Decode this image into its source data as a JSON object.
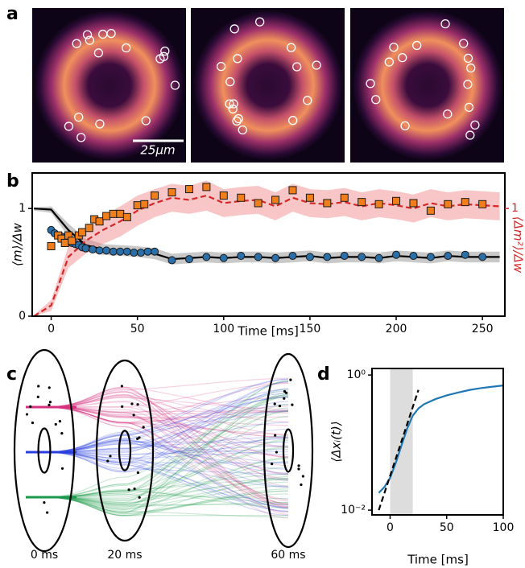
{
  "panel_labels": [
    "a",
    "b",
    "c",
    "d"
  ],
  "images": {
    "scale_bar": "25μm"
  },
  "diagram": {
    "timepoints": [
      "0 ms",
      "20 ms",
      "60 ms"
    ]
  },
  "chart_data": [
    {
      "type": "line",
      "xlabel": "Time [ms]",
      "ylabel": "⟨m⟩/Δw",
      "y2label": "⟨Δm²⟩/Δw",
      "y2_color": "#d62728",
      "xlim": [
        -11,
        263
      ],
      "xticks": [
        0,
        50,
        100,
        150,
        200,
        250
      ],
      "ylim": [
        0,
        1.33
      ],
      "yticks": [
        0,
        1
      ],
      "y2lim": [
        0,
        1.33
      ],
      "y2ticks": [
        1
      ],
      "series": [
        {
          "color": "#000000",
          "line_style": "solid",
          "band_color": "#888888",
          "x": [
            -10,
            0,
            10,
            20,
            30,
            40,
            50,
            60,
            70,
            80,
            90,
            100,
            110,
            120,
            130,
            140,
            150,
            160,
            170,
            180,
            190,
            200,
            210,
            220,
            230,
            240,
            250,
            260
          ],
          "values": [
            1.0,
            0.99,
            0.8,
            0.66,
            0.62,
            0.61,
            0.6,
            0.58,
            0.53,
            0.54,
            0.55,
            0.54,
            0.55,
            0.55,
            0.54,
            0.55,
            0.56,
            0.54,
            0.55,
            0.55,
            0.54,
            0.56,
            0.55,
            0.54,
            0.56,
            0.55,
            0.55,
            0.55
          ],
          "lower": [
            0.98,
            0.96,
            0.74,
            0.6,
            0.57,
            0.56,
            0.55,
            0.53,
            0.48,
            0.49,
            0.5,
            0.49,
            0.5,
            0.5,
            0.49,
            0.5,
            0.51,
            0.49,
            0.5,
            0.5,
            0.49,
            0.51,
            0.5,
            0.49,
            0.51,
            0.5,
            0.5,
            0.5
          ],
          "upper": [
            1.01,
            1.02,
            0.86,
            0.72,
            0.67,
            0.66,
            0.65,
            0.63,
            0.58,
            0.59,
            0.6,
            0.59,
            0.6,
            0.6,
            0.59,
            0.6,
            0.61,
            0.59,
            0.6,
            0.6,
            0.59,
            0.61,
            0.6,
            0.59,
            0.61,
            0.6,
            0.6,
            0.6
          ]
        },
        {
          "color": "#d62728",
          "line_style": "dashed",
          "band_color": "#f08080",
          "axis": "y2",
          "x": [
            -10,
            0,
            10,
            20,
            30,
            40,
            50,
            60,
            70,
            80,
            90,
            100,
            110,
            120,
            130,
            140,
            150,
            160,
            170,
            180,
            190,
            200,
            210,
            220,
            230,
            240,
            250,
            260
          ],
          "values": [
            0.0,
            0.1,
            0.55,
            0.7,
            0.8,
            0.88,
            0.98,
            1.05,
            1.1,
            1.08,
            1.12,
            1.05,
            1.07,
            1.08,
            1.02,
            1.1,
            1.05,
            1.04,
            1.06,
            1.02,
            1.05,
            1.03,
            1.0,
            1.05,
            1.02,
            1.04,
            1.03,
            1.02
          ],
          "lower": [
            0,
            0.05,
            0.45,
            0.58,
            0.67,
            0.74,
            0.84,
            0.92,
            0.97,
            0.95,
            0.98,
            0.92,
            0.94,
            0.95,
            0.89,
            0.97,
            0.92,
            0.91,
            0.93,
            0.89,
            0.92,
            0.9,
            0.87,
            0.92,
            0.89,
            0.91,
            0.9,
            0.89
          ],
          "upper": [
            0.01,
            0.15,
            0.65,
            0.82,
            0.93,
            1.02,
            1.12,
            1.18,
            1.23,
            1.21,
            1.26,
            1.18,
            1.2,
            1.21,
            1.15,
            1.23,
            1.18,
            1.17,
            1.19,
            1.15,
            1.18,
            1.16,
            1.13,
            1.18,
            1.15,
            1.17,
            1.16,
            1.15
          ]
        },
        {
          "color": "#2a6fa8",
          "marker": "circle",
          "x": [
            0,
            2,
            4,
            6,
            8,
            10,
            12,
            14,
            16,
            18,
            20,
            24,
            28,
            32,
            36,
            40,
            44,
            48,
            52,
            56,
            60,
            70,
            80,
            90,
            100,
            110,
            120,
            130,
            140,
            150,
            160,
            170,
            180,
            190,
            200,
            210,
            220,
            230,
            240,
            250
          ],
          "values": [
            0.8,
            0.77,
            0.75,
            0.74,
            0.72,
            0.7,
            0.68,
            0.67,
            0.66,
            0.64,
            0.63,
            0.62,
            0.61,
            0.61,
            0.6,
            0.6,
            0.6,
            0.59,
            0.59,
            0.6,
            0.6,
            0.52,
            0.53,
            0.55,
            0.54,
            0.56,
            0.55,
            0.54,
            0.56,
            0.55,
            0.55,
            0.56,
            0.55,
            0.54,
            0.57,
            0.56,
            0.55,
            0.56,
            0.57,
            0.55
          ]
        },
        {
          "color": "#f07f1b",
          "marker": "square",
          "axis": "y2",
          "x": [
            0,
            4,
            6,
            8,
            10,
            12,
            16,
            18,
            22,
            25,
            28,
            32,
            36,
            40,
            44,
            50,
            54,
            60,
            70,
            80,
            90,
            100,
            110,
            120,
            130,
            140,
            150,
            160,
            170,
            180,
            190,
            200,
            210,
            220,
            230,
            240,
            250
          ],
          "values": [
            0.65,
            0.75,
            0.72,
            0.68,
            0.75,
            0.7,
            0.75,
            0.78,
            0.82,
            0.9,
            0.88,
            0.93,
            0.95,
            0.95,
            0.92,
            1.03,
            1.04,
            1.12,
            1.15,
            1.18,
            1.2,
            1.12,
            1.1,
            1.05,
            1.08,
            1.17,
            1.1,
            1.05,
            1.1,
            1.06,
            1.04,
            1.07,
            1.05,
            0.98,
            1.04,
            1.06,
            1.04
          ]
        }
      ]
    },
    {
      "type": "line",
      "log_y": true,
      "xlabel": "Time [ms]",
      "ylabel": "⟨Δxᵢ(t)⟩",
      "xlim": [
        -16,
        100
      ],
      "xticks": [
        0,
        50,
        100
      ],
      "ylim": [
        0.0085,
        1.25
      ],
      "yticks": [
        {
          "value": 0.01,
          "label": "10⁻²"
        },
        {
          "value": 1,
          "label": "10⁰"
        }
      ],
      "shade": [
        0,
        20
      ],
      "shade_color": "#dddddd",
      "series": [
        {
          "color": "#1f77b4",
          "line_style": "solid",
          "x": [
            -10,
            -5,
            0,
            5,
            10,
            15,
            20,
            25,
            30,
            40,
            50,
            60,
            70,
            80,
            90,
            100
          ],
          "values": [
            0.018,
            0.022,
            0.03,
            0.05,
            0.09,
            0.16,
            0.25,
            0.32,
            0.37,
            0.44,
            0.5,
            0.55,
            0.6,
            0.64,
            0.67,
            0.7
          ]
        },
        {
          "color": "#000000",
          "line_style": "dashed",
          "x": [
            -10,
            25
          ],
          "values": [
            0.01,
            0.6
          ]
        }
      ]
    }
  ]
}
